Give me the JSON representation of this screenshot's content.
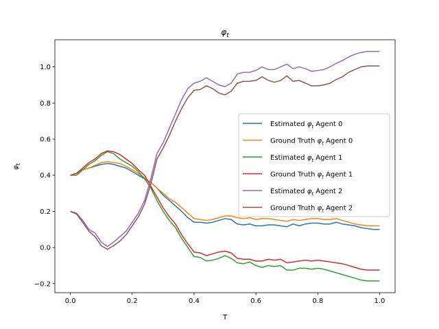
{
  "chart_data": {
    "type": "line",
    "title": "φt",
    "title_main": "φ",
    "title_sub": "t",
    "xlabel": "T",
    "ylabel_main": "φ",
    "ylabel_sub": "t",
    "xlim": [
      -0.05,
      1.05
    ],
    "ylim": [
      -0.25,
      1.15
    ],
    "xticks": [
      0.0,
      0.2,
      0.4,
      0.6,
      0.8,
      1.0
    ],
    "xtick_labels": [
      "0.0",
      "0.2",
      "0.4",
      "0.6",
      "0.8",
      "1.0"
    ],
    "yticks": [
      -0.2,
      0.0,
      0.2,
      0.4,
      0.6,
      0.8,
      1.0
    ],
    "ytick_labels": [
      "−0.2",
      "0.0",
      "0.2",
      "0.4",
      "0.6",
      "0.8",
      "1.0"
    ],
    "grid": false,
    "legend_position": "center-right",
    "series": [
      {
        "name": "Estimated φt Agent 0",
        "legend_prefix": "Estimated ",
        "legend_suffix": " Agent 0",
        "color": "#1f77b4",
        "x": [
          0.0,
          0.02,
          0.04,
          0.06,
          0.08,
          0.1,
          0.12,
          0.14,
          0.16,
          0.18,
          0.2,
          0.22,
          0.24,
          0.26,
          0.28,
          0.3,
          0.32,
          0.34,
          0.36,
          0.38,
          0.4,
          0.42,
          0.44,
          0.46,
          0.48,
          0.5,
          0.52,
          0.54,
          0.56,
          0.58,
          0.6,
          0.62,
          0.64,
          0.66,
          0.68,
          0.7,
          0.72,
          0.74,
          0.76,
          0.78,
          0.8,
          0.82,
          0.84,
          0.86,
          0.88,
          0.9,
          0.92,
          0.94,
          0.96,
          0.98,
          1.0
        ],
        "y": [
          0.4,
          0.41,
          0.43,
          0.44,
          0.45,
          0.46,
          0.465,
          0.46,
          0.45,
          0.44,
          0.42,
          0.4,
          0.38,
          0.36,
          0.33,
          0.29,
          0.26,
          0.23,
          0.2,
          0.165,
          0.14,
          0.14,
          0.135,
          0.14,
          0.15,
          0.16,
          0.155,
          0.13,
          0.125,
          0.13,
          0.12,
          0.12,
          0.125,
          0.125,
          0.12,
          0.115,
          0.13,
          0.12,
          0.13,
          0.135,
          0.135,
          0.13,
          0.13,
          0.14,
          0.13,
          0.125,
          0.12,
          0.11,
          0.105,
          0.1,
          0.1
        ]
      },
      {
        "name": "Ground Truth φt Agent 0",
        "legend_prefix": "Ground Truth ",
        "legend_suffix": " Agent 0",
        "color": "#ff7f0e",
        "x": [
          0.0,
          0.02,
          0.04,
          0.06,
          0.08,
          0.1,
          0.12,
          0.14,
          0.16,
          0.18,
          0.2,
          0.22,
          0.24,
          0.26,
          0.28,
          0.3,
          0.32,
          0.34,
          0.36,
          0.38,
          0.4,
          0.42,
          0.44,
          0.46,
          0.48,
          0.5,
          0.52,
          0.54,
          0.56,
          0.58,
          0.6,
          0.62,
          0.64,
          0.66,
          0.68,
          0.7,
          0.72,
          0.74,
          0.76,
          0.78,
          0.8,
          0.82,
          0.84,
          0.86,
          0.88,
          0.9,
          0.92,
          0.94,
          0.96,
          0.98,
          1.0
        ],
        "y": [
          0.4,
          0.41,
          0.43,
          0.44,
          0.455,
          0.47,
          0.475,
          0.47,
          0.465,
          0.45,
          0.43,
          0.41,
          0.385,
          0.36,
          0.33,
          0.3,
          0.27,
          0.25,
          0.22,
          0.19,
          0.16,
          0.155,
          0.15,
          0.155,
          0.165,
          0.175,
          0.175,
          0.165,
          0.16,
          0.165,
          0.155,
          0.16,
          0.16,
          0.155,
          0.15,
          0.145,
          0.155,
          0.15,
          0.155,
          0.16,
          0.16,
          0.155,
          0.155,
          0.16,
          0.15,
          0.14,
          0.13,
          0.125,
          0.12,
          0.12,
          0.12
        ]
      },
      {
        "name": "Estimated φt Agent 1",
        "legend_prefix": "Estimated ",
        "legend_suffix": " Agent 1",
        "color": "#2ca02c",
        "x": [
          0.0,
          0.02,
          0.04,
          0.06,
          0.08,
          0.1,
          0.12,
          0.14,
          0.16,
          0.18,
          0.2,
          0.22,
          0.24,
          0.26,
          0.28,
          0.3,
          0.32,
          0.34,
          0.36,
          0.38,
          0.4,
          0.42,
          0.44,
          0.46,
          0.48,
          0.5,
          0.52,
          0.54,
          0.56,
          0.58,
          0.6,
          0.62,
          0.64,
          0.66,
          0.68,
          0.7,
          0.72,
          0.74,
          0.76,
          0.78,
          0.8,
          0.82,
          0.84,
          0.86,
          0.88,
          0.9,
          0.92,
          0.94,
          0.96,
          0.98,
          1.0
        ],
        "y": [
          0.4,
          0.4,
          0.43,
          0.46,
          0.48,
          0.51,
          0.53,
          0.52,
          0.49,
          0.47,
          0.45,
          0.42,
          0.38,
          0.33,
          0.26,
          0.2,
          0.15,
          0.11,
          0.05,
          0.0,
          -0.05,
          -0.055,
          -0.075,
          -0.07,
          -0.06,
          -0.045,
          -0.06,
          -0.085,
          -0.09,
          -0.08,
          -0.1,
          -0.11,
          -0.1,
          -0.105,
          -0.1,
          -0.125,
          -0.125,
          -0.115,
          -0.115,
          -0.12,
          -0.115,
          -0.12,
          -0.13,
          -0.14,
          -0.15,
          -0.16,
          -0.17,
          -0.18,
          -0.185,
          -0.185,
          -0.185
        ]
      },
      {
        "name": "Ground Truth φt Agent 1",
        "legend_prefix": "Ground Truth ",
        "legend_suffix": " Agent 1",
        "color": "#d62728",
        "x": [
          0.0,
          0.02,
          0.04,
          0.06,
          0.08,
          0.1,
          0.12,
          0.14,
          0.16,
          0.18,
          0.2,
          0.22,
          0.24,
          0.26,
          0.28,
          0.3,
          0.32,
          0.34,
          0.36,
          0.38,
          0.4,
          0.42,
          0.44,
          0.46,
          0.48,
          0.5,
          0.52,
          0.54,
          0.56,
          0.58,
          0.6,
          0.62,
          0.64,
          0.66,
          0.68,
          0.7,
          0.72,
          0.74,
          0.76,
          0.78,
          0.8,
          0.82,
          0.84,
          0.86,
          0.88,
          0.9,
          0.92,
          0.94,
          0.96,
          0.98,
          1.0
        ],
        "y": [
          0.4,
          0.41,
          0.44,
          0.47,
          0.49,
          0.52,
          0.535,
          0.53,
          0.515,
          0.49,
          0.465,
          0.43,
          0.4,
          0.34,
          0.28,
          0.22,
          0.17,
          0.13,
          0.07,
          0.02,
          -0.025,
          -0.03,
          -0.045,
          -0.035,
          -0.025,
          -0.02,
          -0.03,
          -0.06,
          -0.065,
          -0.065,
          -0.075,
          -0.075,
          -0.065,
          -0.07,
          -0.065,
          -0.085,
          -0.08,
          -0.075,
          -0.07,
          -0.075,
          -0.07,
          -0.075,
          -0.08,
          -0.085,
          -0.09,
          -0.1,
          -0.11,
          -0.12,
          -0.125,
          -0.125,
          -0.125
        ]
      },
      {
        "name": "Estimated φt Agent 2",
        "legend_prefix": "Estimated ",
        "legend_suffix": " Agent 2",
        "color": "#9467bd",
        "x": [
          0.0,
          0.02,
          0.04,
          0.06,
          0.08,
          0.1,
          0.12,
          0.14,
          0.16,
          0.18,
          0.2,
          0.22,
          0.24,
          0.26,
          0.28,
          0.3,
          0.32,
          0.34,
          0.36,
          0.38,
          0.4,
          0.42,
          0.44,
          0.46,
          0.48,
          0.5,
          0.52,
          0.54,
          0.56,
          0.58,
          0.6,
          0.62,
          0.64,
          0.66,
          0.68,
          0.7,
          0.72,
          0.74,
          0.76,
          0.78,
          0.8,
          0.82,
          0.84,
          0.86,
          0.88,
          0.9,
          0.92,
          0.94,
          0.96,
          0.98,
          1.0
        ],
        "y": [
          0.2,
          0.19,
          0.15,
          0.1,
          0.08,
          0.03,
          0.005,
          0.03,
          0.06,
          0.09,
          0.14,
          0.19,
          0.26,
          0.38,
          0.52,
          0.58,
          0.66,
          0.74,
          0.82,
          0.88,
          0.91,
          0.92,
          0.94,
          0.92,
          0.9,
          0.89,
          0.91,
          0.96,
          0.97,
          0.97,
          0.98,
          1.0,
          0.985,
          0.985,
          1.0,
          1.015,
          0.99,
          1.0,
          0.99,
          0.975,
          0.98,
          0.985,
          1.0,
          1.02,
          1.035,
          1.055,
          1.07,
          1.08,
          1.085,
          1.085,
          1.085
        ]
      },
      {
        "name": "Ground Truth φt Agent 2",
        "legend_prefix": "Ground Truth ",
        "legend_suffix": " Agent 2",
        "color": "#8c564b",
        "x": [
          0.0,
          0.02,
          0.04,
          0.06,
          0.08,
          0.1,
          0.12,
          0.14,
          0.16,
          0.18,
          0.2,
          0.22,
          0.24,
          0.26,
          0.28,
          0.3,
          0.32,
          0.34,
          0.36,
          0.38,
          0.4,
          0.42,
          0.44,
          0.46,
          0.48,
          0.5,
          0.52,
          0.54,
          0.56,
          0.58,
          0.6,
          0.62,
          0.64,
          0.66,
          0.68,
          0.7,
          0.72,
          0.74,
          0.76,
          0.78,
          0.8,
          0.82,
          0.84,
          0.86,
          0.88,
          0.9,
          0.92,
          0.94,
          0.96,
          0.98,
          1.0
        ],
        "y": [
          0.2,
          0.185,
          0.14,
          0.09,
          0.06,
          0.01,
          -0.01,
          0.01,
          0.035,
          0.07,
          0.12,
          0.17,
          0.24,
          0.35,
          0.49,
          0.55,
          0.62,
          0.7,
          0.77,
          0.83,
          0.87,
          0.875,
          0.895,
          0.88,
          0.855,
          0.845,
          0.865,
          0.91,
          0.92,
          0.92,
          0.925,
          0.945,
          0.925,
          0.915,
          0.925,
          0.95,
          0.92,
          0.925,
          0.91,
          0.895,
          0.895,
          0.9,
          0.91,
          0.93,
          0.945,
          0.97,
          0.985,
          1.0,
          1.005,
          1.005,
          1.005
        ]
      }
    ]
  }
}
